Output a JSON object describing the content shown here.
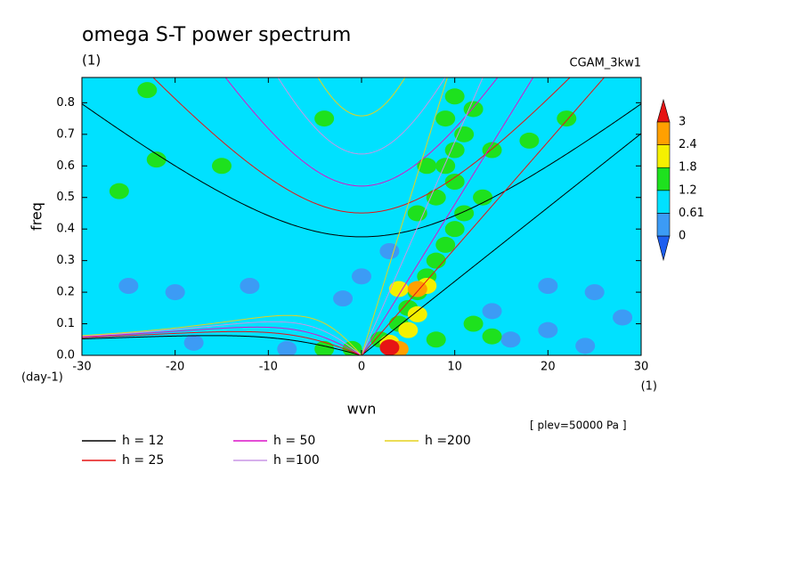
{
  "chart_data": {
    "type": "contour",
    "title": "omega S-T power spectrum",
    "subtitle": "(1)",
    "source_label": "CGAM_3kw1",
    "x_label": "wvn",
    "y_label": "freq",
    "x_unit": "(1)",
    "y_unit": "(day-1)",
    "annotation": "[ plev=50000 Pa ]",
    "xlim": [
      -30,
      30
    ],
    "xticks": [
      -30,
      -20,
      -10,
      0,
      10,
      20,
      30
    ],
    "ylim": [
      0,
      0.88
    ],
    "yticks": [
      {
        "value": 0,
        "label": "0.0"
      },
      0.1,
      0.2,
      0.3,
      0.4,
      0.5,
      0.6,
      0.7,
      0.8
    ],
    "colorbar": {
      "levels": [
        0,
        0.61,
        1.2,
        1.8,
        2.4,
        3
      ],
      "colors": [
        "#1e5ff0",
        "#3c9bf5",
        "#00e1ff",
        "#1ee11e",
        "#f5f000",
        "#ffa000",
        "#e61414"
      ]
    },
    "patches": [
      {
        "wvn": -25,
        "freq": 0.22,
        "value": 0.4
      },
      {
        "wvn": -20,
        "freq": 0.2,
        "value": 0.4
      },
      {
        "wvn": -12,
        "freq": 0.22,
        "value": 0.4
      },
      {
        "wvn": 0,
        "freq": 0.25,
        "value": 0.4
      },
      {
        "wvn": -2,
        "freq": 0.18,
        "value": 0.4
      },
      {
        "wvn": 3,
        "freq": 0.33,
        "value": 0.4
      },
      {
        "wvn": 16,
        "freq": 0.05,
        "value": 0.4
      },
      {
        "wvn": 20,
        "freq": 0.08,
        "value": 0.4
      },
      {
        "wvn": 24,
        "freq": 0.03,
        "value": 0.4
      },
      {
        "wvn": 25,
        "freq": 0.2,
        "value": 0.4
      },
      {
        "wvn": 20,
        "freq": 0.22,
        "value": 0.4
      },
      {
        "wvn": 28,
        "freq": 0.12,
        "value": 0.4
      },
      {
        "wvn": -18,
        "freq": 0.04,
        "value": 0.4
      },
      {
        "wvn": -8,
        "freq": 0.02,
        "value": 0.4
      },
      {
        "wvn": 14,
        "freq": 0.14,
        "value": 0.4
      },
      {
        "wvn": 2,
        "freq": 0.05,
        "value": 1.5
      },
      {
        "wvn": 4,
        "freq": 0.1,
        "value": 1.5
      },
      {
        "wvn": 5,
        "freq": 0.15,
        "value": 1.5
      },
      {
        "wvn": 6,
        "freq": 0.2,
        "value": 1.5
      },
      {
        "wvn": 7,
        "freq": 0.25,
        "value": 1.5
      },
      {
        "wvn": 8,
        "freq": 0.3,
        "value": 1.5
      },
      {
        "wvn": 9,
        "freq": 0.35,
        "value": 1.5
      },
      {
        "wvn": 10,
        "freq": 0.4,
        "value": 1.5
      },
      {
        "wvn": 11,
        "freq": 0.45,
        "value": 1.5
      },
      {
        "wvn": 8,
        "freq": 0.5,
        "value": 1.5
      },
      {
        "wvn": 10,
        "freq": 0.55,
        "value": 1.5
      },
      {
        "wvn": 9,
        "freq": 0.6,
        "value": 1.5
      },
      {
        "wvn": 10,
        "freq": 0.65,
        "value": 1.5
      },
      {
        "wvn": 11,
        "freq": 0.7,
        "value": 1.5
      },
      {
        "wvn": 9,
        "freq": 0.75,
        "value": 1.5
      },
      {
        "wvn": 10,
        "freq": 0.82,
        "value": 1.5
      },
      {
        "wvn": 12,
        "freq": 0.78,
        "value": 1.5
      },
      {
        "wvn": 7,
        "freq": 0.6,
        "value": 1.5
      },
      {
        "wvn": 13,
        "freq": 0.5,
        "value": 1.5
      },
      {
        "wvn": 8,
        "freq": 0.05,
        "value": 1.5
      },
      {
        "wvn": 12,
        "freq": 0.1,
        "value": 1.5
      },
      {
        "wvn": 14,
        "freq": 0.06,
        "value": 1.5
      },
      {
        "wvn": -4,
        "freq": 0.02,
        "value": 1.5
      },
      {
        "wvn": -1,
        "freq": 0.02,
        "value": 1.5
      },
      {
        "wvn": 6,
        "freq": 0.45,
        "value": 1.5
      },
      {
        "wvn": -23,
        "freq": 0.84,
        "value": 1.5
      },
      {
        "wvn": -22,
        "freq": 0.62,
        "value": 1.5
      },
      {
        "wvn": -15,
        "freq": 0.6,
        "value": 1.5
      },
      {
        "wvn": -26,
        "freq": 0.52,
        "value": 1.5
      },
      {
        "wvn": 18,
        "freq": 0.68,
        "value": 1.5
      },
      {
        "wvn": 22,
        "freq": 0.75,
        "value": 1.5
      },
      {
        "wvn": 14,
        "freq": 0.65,
        "value": 1.5
      },
      {
        "wvn": -4,
        "freq": 0.75,
        "value": 1.5
      },
      {
        "wvn": 5,
        "freq": 0.08,
        "value": 2.1
      },
      {
        "wvn": 4,
        "freq": 0.21,
        "value": 2.1
      },
      {
        "wvn": 7,
        "freq": 0.22,
        "value": 2.1
      },
      {
        "wvn": 6,
        "freq": 0.13,
        "value": 2.1
      },
      {
        "wvn": 3,
        "freq": 0.04,
        "value": 2.1
      },
      {
        "wvn": 4,
        "freq": 0.02,
        "value": 2.7
      },
      {
        "wvn": 6,
        "freq": 0.21,
        "value": 2.7
      },
      {
        "wvn": 3,
        "freq": 0.025,
        "value": 3.2
      }
    ],
    "series": [
      {
        "name": "h = 12",
        "color": "#000000",
        "h": 12
      },
      {
        "name": "h = 25",
        "color": "#e61414",
        "h": 25
      },
      {
        "name": "h = 50",
        "color": "#dc14c8",
        "h": 50
      },
      {
        "name": "h =100",
        "color": "#c896e6",
        "h": 100
      },
      {
        "name": "h =200",
        "color": "#e6d21e",
        "h": 200
      }
    ]
  }
}
